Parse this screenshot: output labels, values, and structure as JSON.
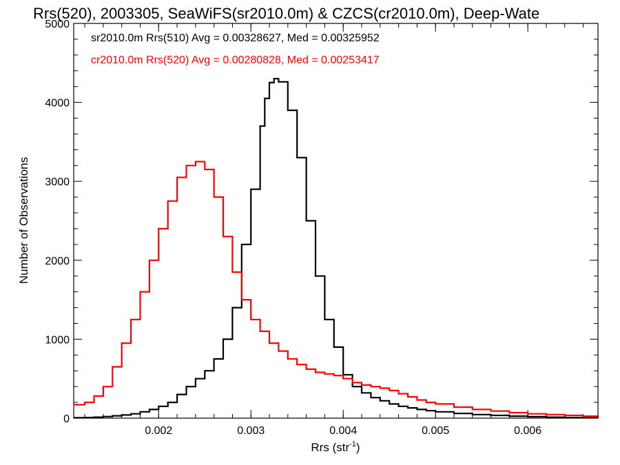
{
  "chart_data": {
    "type": "line",
    "title": "Rrs(520), 2003305, SeaWiFS(sr2010.0m) & CZCS(cr2010.0m), Deep-Wate",
    "xlabel": "Rrs (str",
    "xlabel_sup": "-1",
    "xlabel_close": ")",
    "ylabel": "Number of Observations",
    "xlim": [
      0.00108,
      0.00676
    ],
    "ylim": [
      0,
      5000
    ],
    "x_ticks": [
      {
        "value": 0.002,
        "label": "0.002"
      },
      {
        "value": 0.003,
        "label": "0.003"
      },
      {
        "value": 0.004,
        "label": "0.004"
      },
      {
        "value": 0.005,
        "label": "0.005"
      },
      {
        "value": 0.006,
        "label": "0.006"
      }
    ],
    "y_ticks": [
      {
        "value": 0,
        "label": "0"
      },
      {
        "value": 1000,
        "label": "1000"
      },
      {
        "value": 2000,
        "label": "2000"
      },
      {
        "value": 3000,
        "label": "3000"
      },
      {
        "value": 4000,
        "label": "4000"
      },
      {
        "value": 5000,
        "label": "5000"
      }
    ],
    "grid": false,
    "step": true,
    "series": [
      {
        "name": "sr2010.0m Rrs(510) Avg = 0.00328627, Med = 0.00325952",
        "color": "#000000",
        "x": [
          0.00108,
          0.0012,
          0.0013,
          0.0014,
          0.0015,
          0.0016,
          0.0017,
          0.0018,
          0.0019,
          0.002,
          0.0021,
          0.0022,
          0.0023,
          0.0024,
          0.0025,
          0.0026,
          0.0027,
          0.0028,
          0.0029,
          0.003,
          0.0031,
          0.00315,
          0.0032,
          0.00325,
          0.0033,
          0.0034,
          0.0035,
          0.0036,
          0.0037,
          0.0038,
          0.0039,
          0.004,
          0.0041,
          0.0042,
          0.0043,
          0.0044,
          0.0045,
          0.0046,
          0.0047,
          0.0048,
          0.0049,
          0.005,
          0.0052,
          0.0054,
          0.0056,
          0.0058,
          0.006,
          0.0062,
          0.0064,
          0.0066,
          0.00676
        ],
        "values": [
          5,
          8,
          12,
          20,
          30,
          40,
          55,
          80,
          110,
          150,
          200,
          300,
          400,
          500,
          600,
          750,
          1000,
          1400,
          2200,
          2900,
          3700,
          4050,
          4250,
          4300,
          4260,
          3900,
          3300,
          2500,
          1800,
          1250,
          900,
          550,
          400,
          320,
          260,
          220,
          180,
          150,
          130,
          110,
          95,
          80,
          60,
          45,
          35,
          25,
          18,
          12,
          8,
          5,
          3
        ]
      },
      {
        "name": "cr2010.0m Rrs(520) Avg = 0.00280828, Med = 0.00253417",
        "color": "#ff0000",
        "x": [
          0.00108,
          0.0012,
          0.0013,
          0.0014,
          0.0015,
          0.0016,
          0.0017,
          0.0018,
          0.0019,
          0.002,
          0.0021,
          0.0022,
          0.0023,
          0.0024,
          0.0025,
          0.0026,
          0.0027,
          0.0028,
          0.0029,
          0.003,
          0.0031,
          0.0032,
          0.0033,
          0.0034,
          0.0035,
          0.0036,
          0.0037,
          0.0038,
          0.0039,
          0.004,
          0.0041,
          0.0042,
          0.0043,
          0.0044,
          0.0045,
          0.0046,
          0.0047,
          0.0048,
          0.0049,
          0.005,
          0.0052,
          0.0054,
          0.0056,
          0.0058,
          0.006,
          0.0062,
          0.0064,
          0.0066,
          0.00676
        ],
        "values": [
          170,
          200,
          280,
          400,
          650,
          950,
          1250,
          1600,
          2000,
          2400,
          2750,
          3050,
          3200,
          3250,
          3150,
          2800,
          2300,
          1850,
          1500,
          1250,
          1100,
          950,
          850,
          750,
          680,
          620,
          580,
          560,
          540,
          500,
          450,
          420,
          400,
          380,
          350,
          310,
          270,
          230,
          200,
          180,
          140,
          110,
          90,
          70,
          55,
          45,
          35,
          25,
          15
        ]
      }
    ]
  }
}
